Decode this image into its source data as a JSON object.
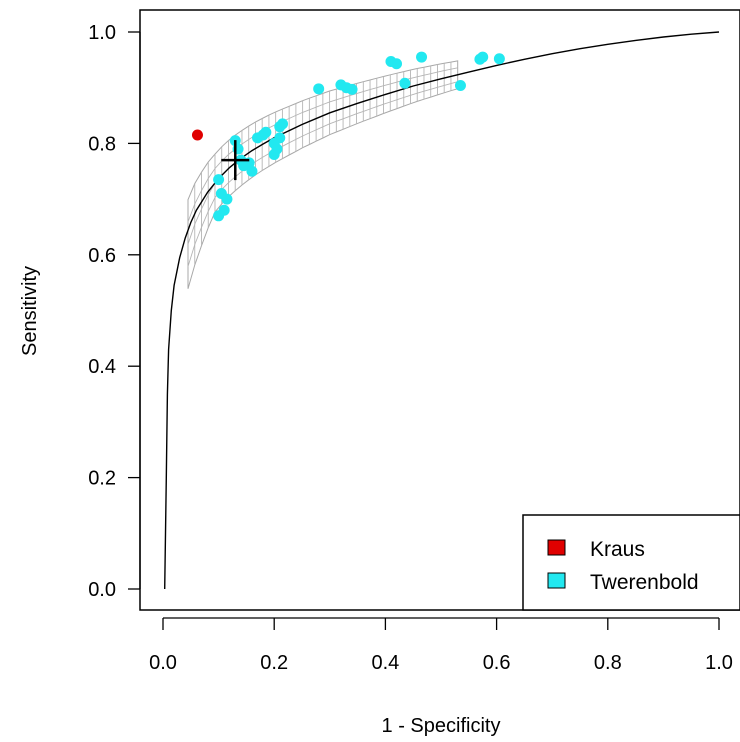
{
  "chart_data": {
    "type": "scatter",
    "title": "",
    "xlabel": "1 - Specificity",
    "ylabel": "Sensitivity",
    "xlim": [
      0,
      1
    ],
    "ylim": [
      0,
      1
    ],
    "x_ticks": [
      "0.0",
      "0.2",
      "0.4",
      "0.6",
      "0.8",
      "1.0"
    ],
    "y_ticks": [
      "0.0",
      "0.2",
      "0.4",
      "0.6",
      "0.8",
      "1.0"
    ],
    "grid": false,
    "legend_position": "bottom-right",
    "series": [
      {
        "name": "Kraus",
        "color": "#e00000",
        "points": [
          [
            0.062,
            0.815
          ]
        ]
      },
      {
        "name": "Twerenbold",
        "color": "#22e8f0",
        "points": [
          [
            0.1,
            0.735
          ],
          [
            0.105,
            0.71
          ],
          [
            0.11,
            0.68
          ],
          [
            0.1,
            0.67
          ],
          [
            0.115,
            0.7
          ],
          [
            0.13,
            0.805
          ],
          [
            0.135,
            0.79
          ],
          [
            0.14,
            0.77
          ],
          [
            0.145,
            0.76
          ],
          [
            0.155,
            0.765
          ],
          [
            0.16,
            0.75
          ],
          [
            0.17,
            0.81
          ],
          [
            0.18,
            0.815
          ],
          [
            0.185,
            0.82
          ],
          [
            0.2,
            0.8
          ],
          [
            0.2,
            0.78
          ],
          [
            0.205,
            0.79
          ],
          [
            0.21,
            0.81
          ],
          [
            0.21,
            0.83
          ],
          [
            0.215,
            0.835
          ],
          [
            0.28,
            0.898
          ],
          [
            0.32,
            0.905
          ],
          [
            0.33,
            0.9
          ],
          [
            0.34,
            0.897
          ],
          [
            0.41,
            0.947
          ],
          [
            0.42,
            0.943
          ],
          [
            0.435,
            0.908
          ],
          [
            0.465,
            0.955
          ],
          [
            0.535,
            0.904
          ],
          [
            0.57,
            0.951
          ],
          [
            0.575,
            0.955
          ],
          [
            0.605,
            0.952
          ]
        ]
      }
    ],
    "summary_point": {
      "x": 0.13,
      "y": 0.77,
      "marker": "cross"
    },
    "sroc_curve": {
      "x": [
        0.003,
        0.006,
        0.008,
        0.01,
        0.015,
        0.02,
        0.03,
        0.04,
        0.05,
        0.06,
        0.08,
        0.1,
        0.12,
        0.14,
        0.16,
        0.18,
        0.2,
        0.25,
        0.3,
        0.35,
        0.4,
        0.45,
        0.5,
        0.55,
        0.6,
        0.65,
        0.7,
        0.75,
        0.8,
        0.85,
        0.9,
        0.95,
        1.0
      ],
      "y": [
        0.0,
        0.2,
        0.35,
        0.43,
        0.5,
        0.545,
        0.595,
        0.63,
        0.658,
        0.68,
        0.712,
        0.737,
        0.757,
        0.773,
        0.787,
        0.799,
        0.81,
        0.834,
        0.855,
        0.872,
        0.888,
        0.903,
        0.916,
        0.928,
        0.94,
        0.951,
        0.961,
        0.97,
        0.978,
        0.985,
        0.991,
        0.996,
        1.0
      ]
    }
  }
}
